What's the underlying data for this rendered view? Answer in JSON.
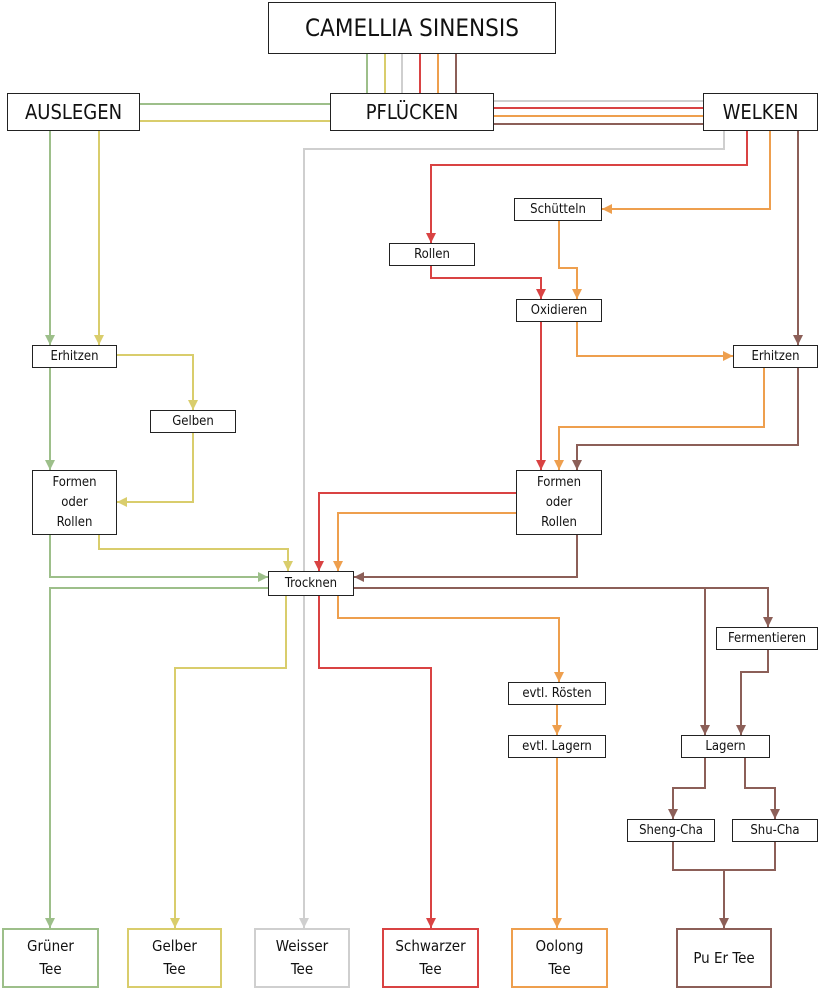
{
  "colors": {
    "green": "#9dbf8a",
    "yellow": "#d9cd6c",
    "grey": "#cfcfcf",
    "red": "#d94343",
    "orange": "#ee9f4e",
    "brown": "#8c5f58",
    "border": "#222222"
  },
  "nodes": {
    "camellia": "CAMELLIA SINENSIS",
    "pfluecken": "PFLÜCKEN",
    "auslegen": "AUSLEGEN",
    "welken": "WELKEN",
    "schuetteln": "Schütteln",
    "rollen": "Rollen",
    "oxidieren": "Oxidieren",
    "erhitzen_left": "Erhitzen",
    "erhitzen_right": "Erhitzen",
    "gelben": "Gelben",
    "formen_left": "Formen\noder\nRollen",
    "formen_right": "Formen\noder\nRollen",
    "trocknen": "Trocknen",
    "fermentieren": "Fermentieren",
    "roesten": "evtl. Rösten",
    "lagern_oolong": "evtl. Lagern",
    "lagern": "Lagern",
    "sheng_cha": "Sheng-Cha",
    "shu_cha": "Shu-Cha"
  },
  "results": {
    "gruener": "Grüner\nTee",
    "gelber": "Gelber\nTee",
    "weisser": "Weisser\nTee",
    "schwarzer": "Schwarzer\nTee",
    "oolong": "Oolong\nTee",
    "puer": "Pu Er Tee"
  }
}
